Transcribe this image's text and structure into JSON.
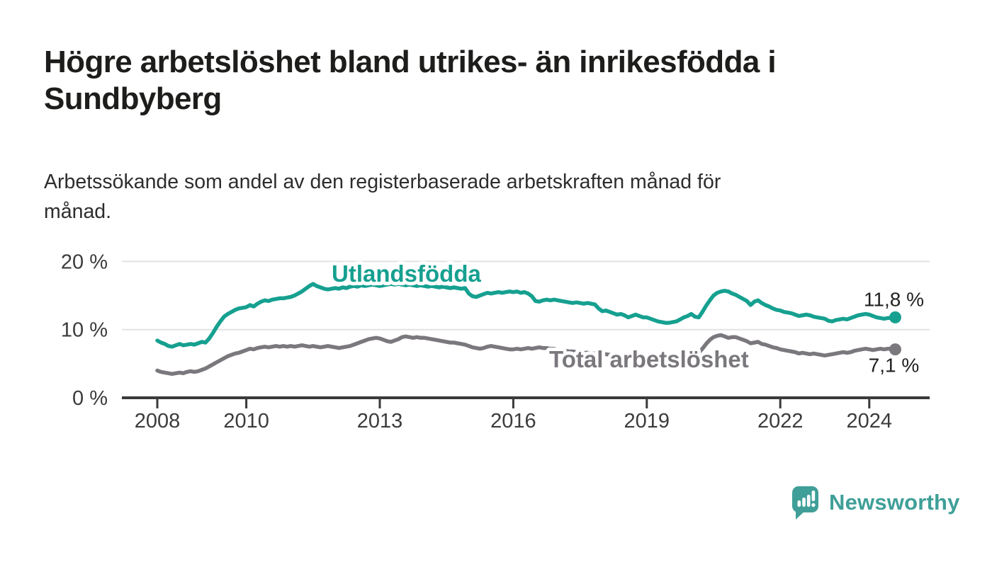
{
  "header": {
    "title_lines": [
      "Högre arbetslöshet bland utrikes- än inrikesfödda i",
      "Sundbyberg"
    ],
    "subtitle_lines": [
      "Arbetssökande som andel av den registerbaserade arbetskraften månad för",
      "månad."
    ]
  },
  "chart_data": {
    "type": "line",
    "title": "Högre arbetslöshet bland utrikes- än inrikesfödda i Sundbyberg",
    "subtitle": "Arbetssökande som andel av den registerbaserade arbetskraften månad för månad.",
    "x_start_year": 2008,
    "points_per_year": 12,
    "grid": "horizontal-only",
    "colors": {
      "axis": "#3a3a3a",
      "grid": "#e2e2e2",
      "tick_text": "#3c3c3c",
      "value_label": "#222222"
    },
    "y_axis": {
      "max": 20,
      "ticks": [
        {
          "value": 0,
          "label": "0 %"
        },
        {
          "value": 10,
          "label": "10 %"
        },
        {
          "value": 20,
          "label": "20 %"
        }
      ]
    },
    "x_axis": {
      "ticks": [
        {
          "year": 2008,
          "label": "2008"
        },
        {
          "year": 2010,
          "label": "2010"
        },
        {
          "year": 2013,
          "label": "2013"
        },
        {
          "year": 2016,
          "label": "2016"
        },
        {
          "year": 2019,
          "label": "2019"
        },
        {
          "year": 2022,
          "label": "2022"
        },
        {
          "year": 2024,
          "label": "2024"
        }
      ]
    },
    "series": [
      {
        "name": "Utlandsfödda",
        "color": "#16a090",
        "end_label": "11,8 %",
        "end_value": 11.8,
        "values": [
          8.4,
          8.1,
          7.9,
          7.6,
          7.5,
          7.7,
          7.9,
          7.7,
          7.8,
          7.9,
          7.8,
          8.0,
          8.2,
          8.1,
          8.7,
          9.5,
          10.4,
          11.2,
          11.9,
          12.3,
          12.6,
          12.9,
          13.1,
          13.2,
          13.3,
          13.6,
          13.4,
          13.8,
          14.1,
          14.3,
          14.2,
          14.4,
          14.5,
          14.6,
          14.6,
          14.7,
          14.8,
          15.0,
          15.3,
          15.6,
          16.0,
          16.4,
          16.7,
          16.4,
          16.2,
          16.0,
          15.9,
          16.0,
          16.1,
          16.0,
          16.2,
          16.1,
          16.3,
          16.4,
          16.3,
          16.5,
          16.4,
          16.5,
          16.6,
          16.5,
          16.4,
          16.5,
          16.6,
          16.7,
          16.6,
          16.7,
          16.6,
          16.5,
          16.6,
          16.5,
          16.4,
          16.5,
          16.4,
          16.3,
          16.4,
          16.3,
          16.2,
          16.3,
          16.2,
          16.1,
          16.2,
          16.1,
          16.0,
          16.1,
          15.3,
          14.9,
          14.8,
          15.0,
          15.2,
          15.4,
          15.3,
          15.4,
          15.5,
          15.4,
          15.5,
          15.6,
          15.5,
          15.6,
          15.4,
          15.5,
          15.3,
          14.9,
          14.2,
          14.1,
          14.3,
          14.4,
          14.3,
          14.4,
          14.3,
          14.2,
          14.1,
          14.0,
          13.9,
          14.0,
          13.9,
          13.8,
          13.9,
          13.8,
          13.7,
          13.1,
          12.7,
          12.8,
          12.6,
          12.4,
          12.2,
          12.3,
          12.1,
          11.8,
          12.0,
          12.2,
          12.0,
          11.8,
          11.8,
          11.6,
          11.4,
          11.2,
          11.1,
          11.0,
          11.0,
          11.1,
          11.2,
          11.5,
          11.8,
          12.0,
          12.3,
          11.9,
          11.8,
          12.6,
          13.5,
          14.3,
          15.0,
          15.4,
          15.6,
          15.7,
          15.6,
          15.3,
          15.1,
          14.8,
          14.5,
          14.2,
          13.6,
          14.1,
          14.3,
          13.9,
          13.6,
          13.4,
          13.1,
          12.9,
          12.8,
          12.6,
          12.5,
          12.4,
          12.2,
          12.0,
          12.1,
          12.2,
          12.1,
          11.9,
          11.8,
          11.7,
          11.6,
          11.3,
          11.2,
          11.4,
          11.5,
          11.6,
          11.5,
          11.7,
          11.9,
          12.1,
          12.2,
          12.3,
          12.2,
          12.0,
          11.8,
          11.7,
          11.6,
          11.7,
          11.7,
          11.8
        ]
      },
      {
        "name": "Total arbetslöshet",
        "color": "#7b787d",
        "end_label": "7,1 %",
        "end_value": 7.1,
        "values": [
          4.0,
          3.8,
          3.7,
          3.6,
          3.5,
          3.6,
          3.7,
          3.6,
          3.8,
          3.9,
          3.8,
          3.9,
          4.1,
          4.3,
          4.6,
          4.9,
          5.2,
          5.5,
          5.8,
          6.1,
          6.3,
          6.5,
          6.6,
          6.8,
          7.0,
          7.2,
          7.1,
          7.3,
          7.4,
          7.5,
          7.4,
          7.5,
          7.6,
          7.5,
          7.6,
          7.5,
          7.6,
          7.5,
          7.6,
          7.7,
          7.6,
          7.5,
          7.6,
          7.5,
          7.4,
          7.5,
          7.6,
          7.5,
          7.4,
          7.3,
          7.4,
          7.5,
          7.6,
          7.8,
          8.0,
          8.2,
          8.4,
          8.6,
          8.7,
          8.8,
          8.7,
          8.5,
          8.3,
          8.2,
          8.4,
          8.6,
          8.9,
          9.0,
          8.9,
          8.8,
          8.9,
          8.8,
          8.8,
          8.7,
          8.6,
          8.5,
          8.4,
          8.3,
          8.2,
          8.1,
          8.1,
          8.0,
          7.9,
          7.8,
          7.6,
          7.4,
          7.3,
          7.2,
          7.3,
          7.5,
          7.6,
          7.5,
          7.4,
          7.3,
          7.2,
          7.1,
          7.1,
          7.2,
          7.1,
          7.2,
          7.3,
          7.2,
          7.3,
          7.4,
          7.3,
          7.3,
          7.2,
          7.2,
          7.0,
          6.9,
          6.9,
          6.8,
          6.8,
          6.7,
          6.7,
          6.6,
          6.6,
          6.5,
          6.5,
          6.4,
          6.4,
          6.4,
          6.3,
          6.3,
          6.2,
          6.2,
          6.1,
          6.1,
          6.0,
          6.0,
          6.0,
          6.0,
          6.0,
          5.9,
          5.9,
          5.9,
          5.8,
          5.8,
          5.9,
          5.9,
          6.0,
          6.1,
          6.2,
          6.4,
          6.6,
          6.5,
          6.6,
          7.2,
          7.9,
          8.5,
          8.9,
          9.1,
          9.2,
          9.0,
          8.8,
          8.9,
          8.9,
          8.7,
          8.5,
          8.3,
          8.0,
          8.1,
          8.2,
          7.9,
          7.8,
          7.6,
          7.4,
          7.3,
          7.1,
          7.0,
          6.9,
          6.8,
          6.7,
          6.5,
          6.6,
          6.5,
          6.4,
          6.5,
          6.4,
          6.3,
          6.2,
          6.3,
          6.4,
          6.5,
          6.6,
          6.7,
          6.6,
          6.7,
          6.9,
          7.0,
          7.1,
          7.2,
          7.1,
          7.0,
          7.1,
          7.2,
          7.1,
          7.2,
          7.2,
          7.1
        ]
      }
    ]
  },
  "branding": {
    "name": "Newsworthy",
    "color": "#3f9f98"
  }
}
